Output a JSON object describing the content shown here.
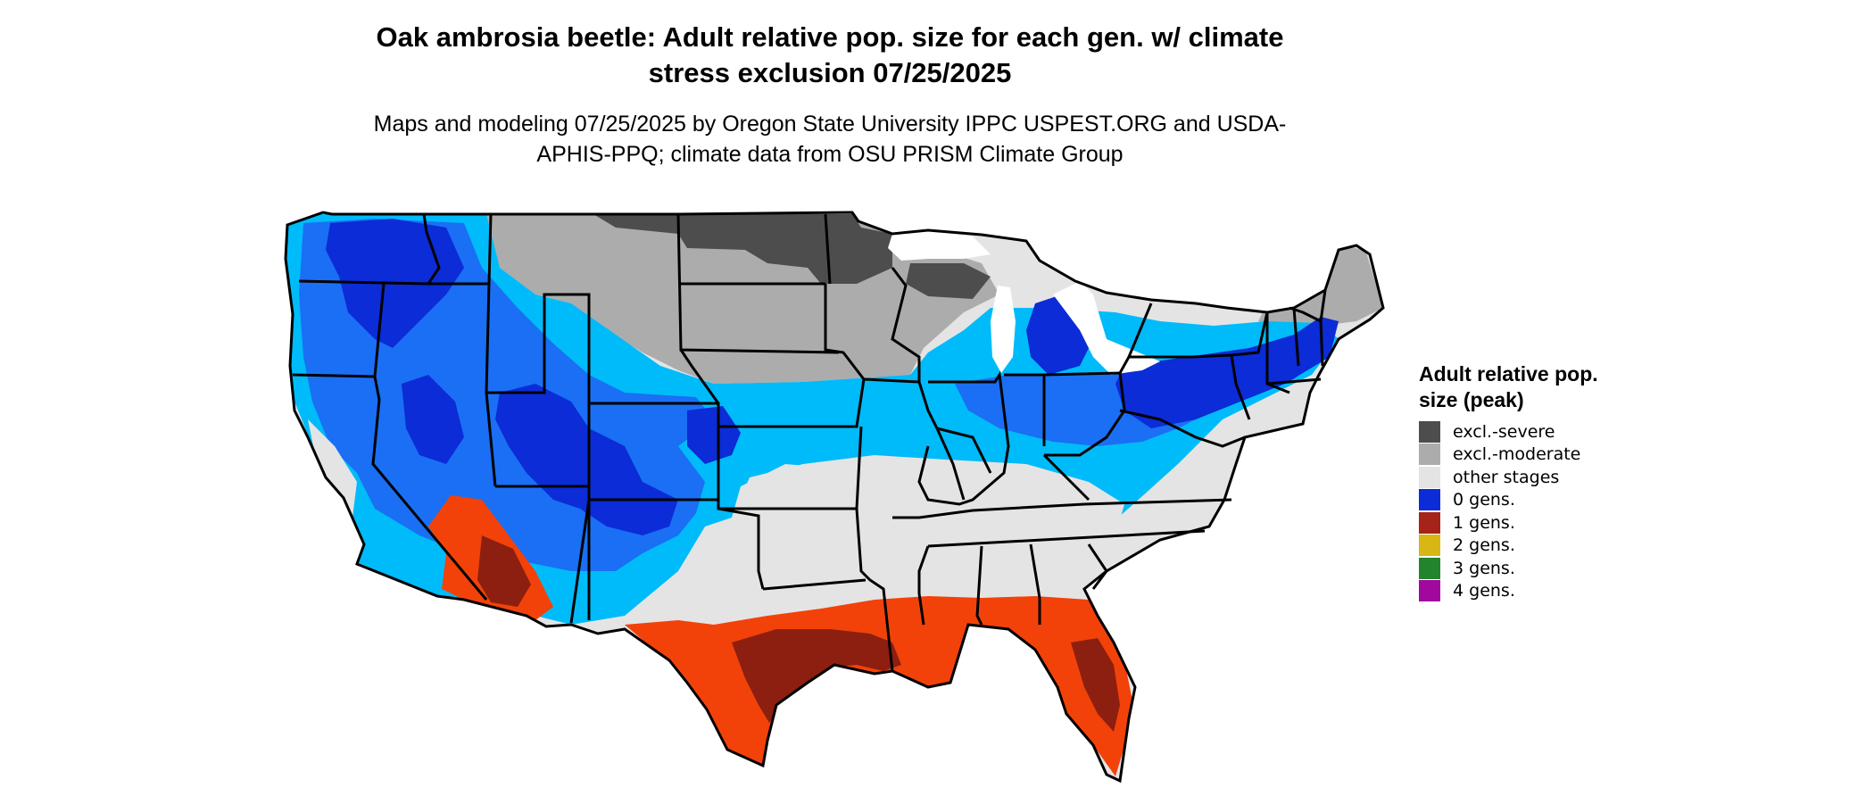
{
  "title": "Oak ambrosia beetle: Adult relative pop. size for each gen. w/ climate stress exclusion 07/25/2025",
  "subtitle": "Maps and modeling 07/25/2025 by Oregon State University IPPC USPEST.ORG and USDA-APHIS-PPQ; climate data from OSU PRISM Climate Group",
  "legend": {
    "title": "Adult relative pop. size (peak)",
    "items": [
      {
        "label": "excl.-severe",
        "color": "#4d4d4d"
      },
      {
        "label": "excl.-moderate",
        "color": "#acacac"
      },
      {
        "label": "other stages",
        "color": "#e4e4e4"
      },
      {
        "label": "0 gens.",
        "color": "#0b2cd6"
      },
      {
        "label": "1 gens.",
        "color": "#a52318"
      },
      {
        "label": "2 gens.",
        "color": "#d8b714"
      },
      {
        "label": "3 gens.",
        "color": "#22842c"
      },
      {
        "label": "4 gens.",
        "color": "#a1089d"
      }
    ]
  },
  "map_colors": {
    "light_blue": "#00bbfa",
    "mid_blue": "#1a6ff5",
    "orange_red": "#f2420a",
    "dark_red": "#8c1f10"
  }
}
